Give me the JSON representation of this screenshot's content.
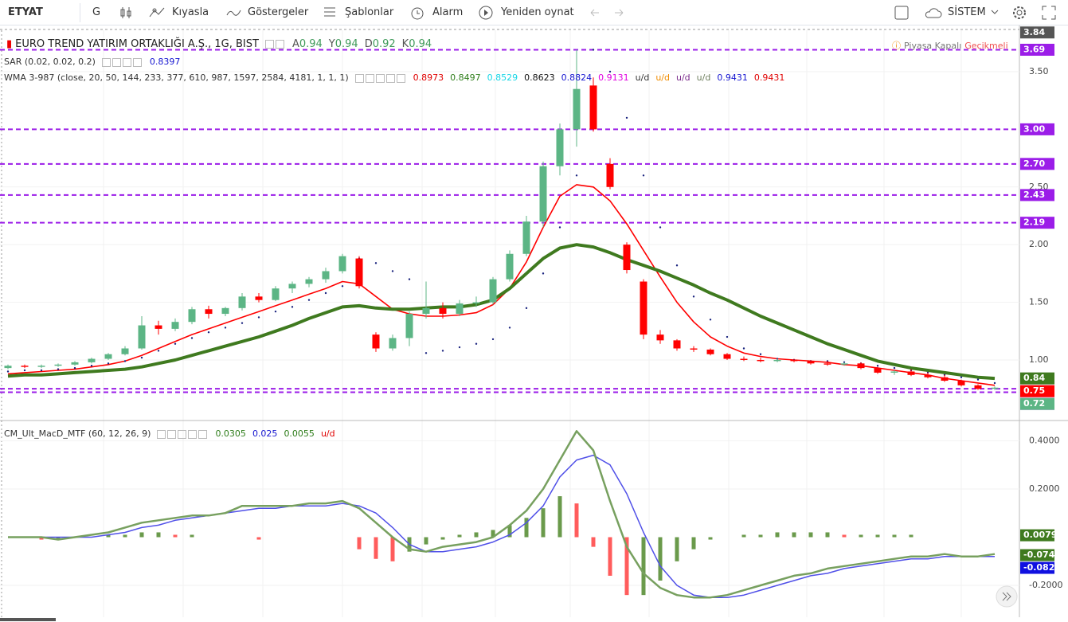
{
  "toolbar": {
    "symbol": "ETYAT",
    "interval": "G",
    "items": [
      "Kıyasla",
      "Göstergeler",
      "Şablonlar",
      "Alarm",
      "Yeniden oynat"
    ],
    "theme": "SİSTEM"
  },
  "price_panel": {
    "title": "EURO TREND YATIRIM ORTAKLIĞI A.Ş., 1G, BIST",
    "ohlc": [
      {
        "key": "A",
        "value": 0.94
      },
      {
        "key": "Y",
        "value": 0.94
      },
      {
        "key": "D",
        "value": 0.92
      },
      {
        "key": "K",
        "value": 0.94
      }
    ],
    "status": "Piyasa Kapalı",
    "delay": "Gecikmeli",
    "sar_legend": {
      "name": "SAR (0.02, 0.02, 0.2)",
      "value": 0.8397
    },
    "wma_legend": {
      "name": "WMA 3-987 (close, 20, 50, 144, 233, 377, 610, 987, 1597, 2584, 4181, 1, 1, 1)",
      "items": [
        {
          "value": 0.8973,
          "color": "#e00000"
        },
        {
          "value": 0.8497,
          "color": "#2e7d1a"
        },
        {
          "value": 0.8529,
          "color": "#16d6e6"
        },
        {
          "value": 0.8623,
          "color": "#111111"
        },
        {
          "value": 0.8824,
          "color": "#1515d0"
        },
        {
          "value": 0.9131,
          "color": "#e000e0"
        },
        {
          "value": "u/d",
          "color": "#333333"
        },
        {
          "value": "u/d",
          "color": "#f08c00"
        },
        {
          "value": "u/d",
          "color": "#7a2a8a"
        },
        {
          "value": "u/d",
          "color": "#708060"
        },
        {
          "value": 0.9431,
          "color": "#1515d0"
        },
        {
          "value": 0.9431,
          "color": "#e00000"
        }
      ]
    },
    "ylim": [
      0.475,
      3.859
    ],
    "yticks": [
      {
        "value": 1,
        "label": "1.00"
      },
      {
        "value": 1.5,
        "label": "1.50"
      },
      {
        "value": 2,
        "label": "2.00"
      },
      {
        "value": 2.5,
        "label": "2.50"
      },
      {
        "value": 3.5,
        "label": "3.50"
      }
    ],
    "levels": [
      3.69,
      {
        "value": 3,
        "label": "3.00"
      },
      {
        "value": 2.7,
        "label": "2.70"
      },
      2.43,
      2.19,
      0.75,
      0.72
    ],
    "level_color": "#9b1de8",
    "price_labels": [
      {
        "value": 3.84,
        "color": "#555555"
      },
      {
        "value": 0.84,
        "color": "#3f7a1f"
      },
      {
        "value": 0.75,
        "color": "#ff0000"
      },
      {
        "value": 0.72,
        "color": "#5cb585"
      }
    ],
    "up_color": "#5cb585",
    "down_color": "#ff0000",
    "candles": [
      [
        0.93,
        0.96,
        0.92,
        0.95
      ],
      [
        0.95,
        0.96,
        0.93,
        0.94
      ],
      [
        0.94,
        0.96,
        0.93,
        0.95
      ],
      [
        0.95,
        0.97,
        0.94,
        0.96
      ],
      [
        0.96,
        0.99,
        0.95,
        0.98
      ],
      [
        0.98,
        1.02,
        0.97,
        1.01
      ],
      [
        1.01,
        1.06,
        1.0,
        1.05
      ],
      [
        1.05,
        1.12,
        1.04,
        1.1
      ],
      [
        1.1,
        1.38,
        1.09,
        1.3
      ],
      [
        1.3,
        1.34,
        1.22,
        1.27
      ],
      [
        1.27,
        1.36,
        1.25,
        1.33
      ],
      [
        1.33,
        1.46,
        1.31,
        1.44
      ],
      [
        1.44,
        1.47,
        1.36,
        1.4
      ],
      [
        1.4,
        1.46,
        1.38,
        1.45
      ],
      [
        1.45,
        1.58,
        1.43,
        1.55
      ],
      [
        1.55,
        1.58,
        1.5,
        1.52
      ],
      [
        1.52,
        1.64,
        1.51,
        1.62
      ],
      [
        1.62,
        1.68,
        1.58,
        1.66
      ],
      [
        1.66,
        1.72,
        1.63,
        1.7
      ],
      [
        1.7,
        1.8,
        1.67,
        1.77
      ],
      [
        1.77,
        1.92,
        1.75,
        1.9
      ],
      [
        1.88,
        1.9,
        1.62,
        1.64
      ],
      [
        1.22,
        1.24,
        1.07,
        1.1
      ],
      [
        1.1,
        1.22,
        1.08,
        1.19
      ],
      [
        1.19,
        1.42,
        1.12,
        1.4
      ],
      [
        1.4,
        1.68,
        1.36,
        1.45
      ],
      [
        1.45,
        1.5,
        1.36,
        1.4
      ],
      [
        1.4,
        1.52,
        1.38,
        1.49
      ],
      [
        1.49,
        1.55,
        1.46,
        1.5
      ],
      [
        1.5,
        1.72,
        1.48,
        1.7
      ],
      [
        1.7,
        1.95,
        1.68,
        1.92
      ],
      [
        1.92,
        2.25,
        1.9,
        2.2
      ],
      [
        2.2,
        2.72,
        2.15,
        2.68
      ],
      [
        2.68,
        3.05,
        2.6,
        3.0
      ],
      [
        3.0,
        3.69,
        2.85,
        3.35
      ],
      [
        3.38,
        3.45,
        2.98,
        3.0
      ],
      [
        2.7,
        2.75,
        2.48,
        2.5
      ],
      [
        2.0,
        2.02,
        1.75,
        1.78
      ],
      [
        1.68,
        1.7,
        1.18,
        1.22
      ],
      [
        1.22,
        1.26,
        1.14,
        1.17
      ],
      [
        1.17,
        1.18,
        1.08,
        1.1
      ],
      [
        1.1,
        1.12,
        1.07,
        1.09
      ],
      [
        1.09,
        1.1,
        1.04,
        1.05
      ],
      [
        1.05,
        1.06,
        1.0,
        1.01
      ],
      [
        1.01,
        1.03,
        0.99,
        1.0
      ],
      [
        1.0,
        1.02,
        0.98,
        0.99
      ],
      [
        0.99,
        1.01,
        0.98,
        1.0
      ],
      [
        1.0,
        1.01,
        0.98,
        0.99
      ],
      [
        0.99,
        1.0,
        0.96,
        0.97
      ],
      [
        0.97,
        0.99,
        0.95,
        0.96
      ],
      [
        0.96,
        0.98,
        0.95,
        0.97
      ],
      [
        0.97,
        0.98,
        0.92,
        0.93
      ],
      [
        0.93,
        0.94,
        0.88,
        0.89
      ],
      [
        0.89,
        0.91,
        0.87,
        0.9
      ],
      [
        0.9,
        0.92,
        0.86,
        0.87
      ],
      [
        0.87,
        0.89,
        0.84,
        0.85
      ],
      [
        0.85,
        0.87,
        0.81,
        0.82
      ],
      [
        0.82,
        0.83,
        0.77,
        0.78
      ],
      [
        0.78,
        0.79,
        0.74,
        0.75
      ],
      [
        0.75,
        0.77,
        0.74,
        0.76
      ]
    ],
    "lines": [
      {
        "color": "#ff0000",
        "width": 1.6,
        "values": [
          0.88,
          0.89,
          0.9,
          0.91,
          0.92,
          0.94,
          0.96,
          0.99,
          1.04,
          1.1,
          1.16,
          1.22,
          1.27,
          1.32,
          1.37,
          1.42,
          1.47,
          1.52,
          1.57,
          1.62,
          1.68,
          1.66,
          1.55,
          1.44,
          1.4,
          1.38,
          1.38,
          1.39,
          1.41,
          1.48,
          1.62,
          1.85,
          2.15,
          2.42,
          2.52,
          2.5,
          2.38,
          2.18,
          1.95,
          1.72,
          1.5,
          1.33,
          1.2,
          1.12,
          1.06,
          1.03,
          1.01,
          1.0,
          0.99,
          0.98,
          0.96,
          0.95,
          0.93,
          0.91,
          0.89,
          0.87,
          0.84,
          0.82,
          0.8,
          0.78
        ]
      },
      {
        "color": "#3f7a1f",
        "width": 4,
        "values": [
          0.86,
          0.87,
          0.87,
          0.88,
          0.89,
          0.9,
          0.91,
          0.92,
          0.94,
          0.97,
          1.0,
          1.04,
          1.08,
          1.12,
          1.16,
          1.2,
          1.25,
          1.3,
          1.36,
          1.41,
          1.46,
          1.47,
          1.45,
          1.44,
          1.44,
          1.45,
          1.46,
          1.46,
          1.48,
          1.52,
          1.62,
          1.75,
          1.88,
          1.97,
          2.0,
          1.98,
          1.93,
          1.87,
          1.82,
          1.77,
          1.71,
          1.65,
          1.58,
          1.52,
          1.45,
          1.38,
          1.32,
          1.26,
          1.2,
          1.14,
          1.09,
          1.04,
          0.99,
          0.96,
          0.93,
          0.91,
          0.89,
          0.87,
          0.85,
          0.84
        ]
      }
    ],
    "sar": {
      "color": "#1a237e",
      "values": [
        0.9,
        0.91,
        0.91,
        0.92,
        0.93,
        0.95,
        0.97,
        0.99,
        1.02,
        1.08,
        1.14,
        1.19,
        1.24,
        1.28,
        1.32,
        1.37,
        1.42,
        1.46,
        1.52,
        1.58,
        1.64,
        1.88,
        1.84,
        1.77,
        1.7,
        1.06,
        1.08,
        1.11,
        1.14,
        1.18,
        1.28,
        1.45,
        1.75,
        2.15,
        2.6,
        3.69,
        3.5,
        3.1,
        2.6,
        2.15,
        1.82,
        1.55,
        1.35,
        1.2,
        1.1,
        1.05,
        1.01,
        1.0,
        0.99,
        0.99,
        0.98,
        0.97,
        0.95,
        0.93,
        0.91,
        0.89,
        0.87,
        0.85,
        0.83,
        0.8
      ]
    }
  },
  "macd_panel": {
    "name": "CM_Ult_MacD_MTF (60, 12, 26, 9)",
    "legend": [
      {
        "value": 0.0305,
        "color": "#2e7d1a"
      },
      {
        "value": 0.025,
        "color": "#1515d0"
      },
      {
        "value": 0.0055,
        "color": "#2e7d1a"
      },
      {
        "value": "u/d",
        "color": "#e00000"
      }
    ],
    "ylim": [
      -0.332,
      0.484
    ],
    "yticks": [
      {
        "value": 0.4,
        "label": "0.4000"
      },
      {
        "value": 0.2,
        "label": "0.2000"
      },
      {
        "value": -0.2,
        "label": "-0.2000"
      }
    ],
    "labels": [
      {
        "value": 0.0079,
        "color": "#3f7a1f"
      },
      {
        "value": -0.0744,
        "color": "#3f7a1f"
      },
      {
        "value": -0.0823,
        "color": "#1010e0"
      }
    ],
    "macd": {
      "color": "#77a05f",
      "values": [
        0.0,
        0.0,
        0.0,
        -0.01,
        0.0,
        0.01,
        0.02,
        0.04,
        0.06,
        0.07,
        0.08,
        0.09,
        0.09,
        0.1,
        0.13,
        0.13,
        0.13,
        0.13,
        0.14,
        0.14,
        0.15,
        0.12,
        0.06,
        0.0,
        -0.05,
        -0.06,
        -0.04,
        -0.03,
        -0.02,
        0.0,
        0.05,
        0.11,
        0.2,
        0.32,
        0.44,
        0.36,
        0.15,
        -0.04,
        -0.15,
        -0.21,
        -0.24,
        -0.25,
        -0.25,
        -0.24,
        -0.22,
        -0.2,
        -0.18,
        -0.16,
        -0.15,
        -0.13,
        -0.12,
        -0.11,
        -0.1,
        -0.09,
        -0.08,
        -0.08,
        -0.07,
        -0.08,
        -0.08,
        -0.07
      ]
    },
    "signal": {
      "color": "#5050e8",
      "values": [
        0.0,
        0.0,
        0.0,
        0.0,
        0.0,
        0.0,
        0.01,
        0.02,
        0.04,
        0.05,
        0.07,
        0.08,
        0.09,
        0.1,
        0.11,
        0.12,
        0.12,
        0.13,
        0.13,
        0.13,
        0.14,
        0.13,
        0.1,
        0.04,
        -0.03,
        -0.06,
        -0.06,
        -0.05,
        -0.04,
        -0.02,
        0.01,
        0.06,
        0.13,
        0.25,
        0.32,
        0.34,
        0.3,
        0.18,
        0.02,
        -0.12,
        -0.2,
        -0.24,
        -0.25,
        -0.25,
        -0.24,
        -0.22,
        -0.2,
        -0.18,
        -0.16,
        -0.15,
        -0.13,
        -0.12,
        -0.11,
        -0.1,
        -0.09,
        -0.09,
        -0.08,
        -0.08,
        -0.08,
        -0.08
      ]
    },
    "histogram": {
      "rise_color": "#6a9a4b",
      "fall_color": "#ff5c5c",
      "values": [
        0.0,
        0.0,
        -0.01,
        -0.01,
        0.0,
        0.0,
        0.01,
        0.01,
        0.02,
        0.02,
        0.01,
        0.01,
        0.0,
        0.0,
        0.0,
        -0.01,
        0.0,
        0.0,
        0.0,
        0.0,
        0.0,
        -0.05,
        -0.09,
        -0.1,
        -0.06,
        -0.03,
        -0.01,
        0.01,
        0.02,
        0.03,
        0.05,
        0.08,
        0.12,
        0.17,
        0.14,
        -0.04,
        -0.16,
        -0.24,
        -0.24,
        -0.18,
        -0.1,
        -0.05,
        -0.01,
        0.0,
        0.01,
        0.01,
        0.02,
        0.02,
        0.02,
        0.02,
        0.01,
        0.01,
        0.01,
        0.01,
        0.01,
        0.0,
        0.0,
        0.0,
        0.0,
        0.0
      ]
    }
  }
}
